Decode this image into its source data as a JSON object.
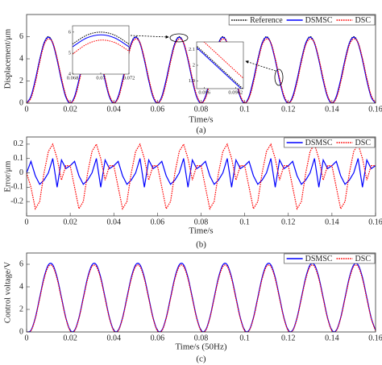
{
  "chart_data": [
    {
      "type": "line",
      "xlabel": "Time/s",
      "ylabel": "Displacement/μm",
      "caption": "(a)",
      "smooth": true,
      "legend": "upper right",
      "xlim": [
        0,
        0.16
      ],
      "ylim": [
        0,
        8
      ],
      "xticks": [
        0,
        0.02,
        0.04,
        0.06,
        0.08,
        0.1,
        0.12,
        0.14,
        0.16
      ],
      "yticks": [
        0,
        2,
        4,
        6
      ],
      "x": [
        0,
        0.002,
        0.004,
        0.006,
        0.008,
        0.01,
        0.012,
        0.014,
        0.016,
        0.018,
        0.02,
        0.022,
        0.024,
        0.026,
        0.028,
        0.03,
        0.032,
        0.034,
        0.036,
        0.038,
        0.04,
        0.042,
        0.044,
        0.046,
        0.048,
        0.05,
        0.052,
        0.054,
        0.056,
        0.058,
        0.06,
        0.062,
        0.064,
        0.066,
        0.068,
        0.07,
        0.072,
        0.074,
        0.076,
        0.078,
        0.08,
        0.082,
        0.084,
        0.086,
        0.088,
        0.09,
        0.092,
        0.094,
        0.096,
        0.098,
        0.1,
        0.102,
        0.104,
        0.106,
        0.108,
        0.11,
        0.112,
        0.114,
        0.116,
        0.118,
        0.12,
        0.122,
        0.124,
        0.126,
        0.128,
        0.13,
        0.132,
        0.134,
        0.136,
        0.138,
        0.14,
        0.142,
        0.144,
        0.146,
        0.148,
        0.15,
        0.152,
        0.154,
        0.156,
        0.158,
        0.16
      ],
      "series": [
        {
          "name": "Reference",
          "color": "#000000",
          "style": "dotted",
          "values": [
            0,
            0.57,
            2.07,
            3.93,
            5.43,
            6,
            5.43,
            3.93,
            2.07,
            0.57,
            0,
            0.57,
            2.07,
            3.93,
            5.43,
            6,
            5.43,
            3.93,
            2.07,
            0.57,
            0,
            0.57,
            2.07,
            3.93,
            5.43,
            6,
            5.43,
            3.93,
            2.07,
            0.57,
            0,
            0.57,
            2.07,
            3.93,
            5.43,
            6,
            5.43,
            3.93,
            2.07,
            0.57,
            0,
            0.57,
            2.07,
            3.93,
            5.43,
            6,
            5.43,
            3.93,
            2.07,
            0.57,
            0,
            0.57,
            2.07,
            3.93,
            5.43,
            6,
            5.43,
            3.93,
            2.07,
            0.57,
            0,
            0.57,
            2.07,
            3.93,
            5.43,
            6,
            5.43,
            3.93,
            2.07,
            0.57,
            0,
            0.57,
            2.07,
            3.93,
            5.43,
            6,
            5.43,
            3.93,
            2.07,
            0.57,
            0
          ]
        },
        {
          "name": "DSMSC",
          "color": "#0000ff",
          "style": "solid",
          "values": [
            0,
            0.6,
            2.1,
            3.9,
            5.4,
            5.95,
            5.4,
            3.9,
            2.05,
            0.55,
            0,
            0.6,
            2.1,
            3.9,
            5.4,
            5.95,
            5.4,
            3.9,
            2.05,
            0.55,
            0,
            0.6,
            2.1,
            3.9,
            5.4,
            5.95,
            5.4,
            3.9,
            2.05,
            0.55,
            0,
            0.6,
            2.1,
            3.9,
            5.4,
            5.95,
            5.4,
            3.9,
            2.05,
            0.55,
            0,
            0.6,
            2.1,
            3.9,
            5.4,
            5.95,
            5.4,
            3.9,
            2.05,
            0.55,
            0,
            0.6,
            2.1,
            3.9,
            5.4,
            5.95,
            5.4,
            3.9,
            2.05,
            0.55,
            0,
            0.6,
            2.1,
            3.9,
            5.4,
            5.95,
            5.4,
            3.9,
            2.05,
            0.55,
            0,
            0.6,
            2.1,
            3.9,
            5.4,
            5.95,
            5.4,
            3.9,
            2.05,
            0.55,
            0
          ]
        },
        {
          "name": "DSC",
          "color": "#ff0000",
          "style": "dotted",
          "values": [
            0,
            0.45,
            1.85,
            3.7,
            5.25,
            5.8,
            5.45,
            4.05,
            2.25,
            0.7,
            0.05,
            0.45,
            1.85,
            3.7,
            5.25,
            5.8,
            5.45,
            4.05,
            2.25,
            0.7,
            0.05,
            0.45,
            1.85,
            3.7,
            5.25,
            5.8,
            5.45,
            4.05,
            2.25,
            0.7,
            0.05,
            0.45,
            1.85,
            3.7,
            5.25,
            5.8,
            5.45,
            4.05,
            2.25,
            0.7,
            0.05,
            0.45,
            1.85,
            3.7,
            5.25,
            5.8,
            5.45,
            4.05,
            2.25,
            0.7,
            0.05,
            0.45,
            1.85,
            3.7,
            5.25,
            5.8,
            5.45,
            4.05,
            2.25,
            0.7,
            0.05,
            0.45,
            1.85,
            3.7,
            5.25,
            5.8,
            5.45,
            4.05,
            2.25,
            0.7,
            0.05,
            0.45,
            1.85,
            3.7,
            5.25,
            5.8,
            5.45,
            4.05,
            2.25,
            0.7,
            0.05
          ]
        }
      ]
    },
    {
      "type": "line",
      "xlabel": "Time/s",
      "ylabel": "Error/μm",
      "caption": "(b)",
      "smooth": false,
      "legend": "upper right",
      "xlim": [
        0,
        0.16
      ],
      "ylim": [
        -0.3,
        0.25
      ],
      "xticks": [
        0,
        0.02,
        0.04,
        0.06,
        0.08,
        0.1,
        0.12,
        0.14,
        0.16
      ],
      "yticks": [
        -0.2,
        -0.1,
        0,
        0.1,
        0.2
      ],
      "x": [
        0,
        0.002,
        0.004,
        0.006,
        0.008,
        0.01,
        0.012,
        0.014,
        0.016,
        0.018,
        0.02,
        0.022,
        0.024,
        0.026,
        0.028,
        0.03,
        0.032,
        0.034,
        0.036,
        0.038,
        0.04,
        0.042,
        0.044,
        0.046,
        0.048,
        0.05,
        0.052,
        0.054,
        0.056,
        0.058,
        0.06,
        0.062,
        0.064,
        0.066,
        0.068,
        0.07,
        0.072,
        0.074,
        0.076,
        0.078,
        0.08,
        0.082,
        0.084,
        0.086,
        0.088,
        0.09,
        0.092,
        0.094,
        0.096,
        0.098,
        0.1,
        0.102,
        0.104,
        0.106,
        0.108,
        0.11,
        0.112,
        0.114,
        0.116,
        0.118,
        0.12,
        0.122,
        0.124,
        0.126,
        0.128,
        0.13,
        0.132,
        0.134,
        0.136,
        0.138,
        0.14,
        0.142,
        0.144,
        0.146,
        0.148,
        0.15,
        0.152,
        0.154,
        0.156,
        0.158,
        0.16
      ],
      "series": [
        {
          "name": "DSMSC",
          "color": "#0000ff",
          "style": "solid",
          "values": [
            0,
            0.08,
            -0.02,
            -0.08,
            -0.05,
            0,
            0.1,
            -0.1,
            0.09,
            0.03,
            0.05,
            0.08,
            -0.02,
            -0.08,
            -0.05,
            0,
            0.1,
            -0.1,
            0.09,
            0.03,
            0.05,
            0.08,
            -0.02,
            -0.08,
            -0.05,
            0,
            0.1,
            -0.1,
            0.09,
            0.03,
            0.05,
            0.08,
            -0.02,
            -0.08,
            -0.05,
            0,
            0.1,
            -0.1,
            0.09,
            0.03,
            0.05,
            0.08,
            -0.02,
            -0.08,
            -0.05,
            0,
            0.1,
            -0.1,
            0.09,
            0.03,
            0.05,
            0.08,
            -0.02,
            -0.08,
            -0.05,
            0,
            0.1,
            -0.1,
            0.09,
            0.03,
            0.05,
            0.08,
            -0.02,
            -0.08,
            -0.05,
            0,
            0.1,
            -0.1,
            0.09,
            0.03,
            0.05,
            0.08,
            -0.02,
            -0.08,
            -0.05,
            0,
            0.1,
            -0.1,
            0.09,
            0.03,
            0.05
          ]
        },
        {
          "name": "DSC",
          "color": "#ff0000",
          "style": "dotted",
          "values": [
            0,
            -0.1,
            -0.25,
            -0.2,
            0,
            0.15,
            0.2,
            0.1,
            -0.05,
            0.05,
            0.05,
            -0.1,
            -0.25,
            -0.2,
            0,
            0.15,
            0.2,
            0.1,
            -0.05,
            0.05,
            0.05,
            -0.1,
            -0.25,
            -0.2,
            0,
            0.15,
            0.2,
            0.1,
            -0.05,
            0.05,
            0.05,
            -0.1,
            -0.25,
            -0.2,
            0,
            0.15,
            0.2,
            0.1,
            -0.05,
            0.05,
            0.05,
            -0.1,
            -0.25,
            -0.2,
            0,
            0.15,
            0.2,
            0.1,
            -0.05,
            0.05,
            0.05,
            -0.1,
            -0.25,
            -0.2,
            0,
            0.15,
            0.2,
            0.1,
            -0.05,
            0.05,
            0.05,
            -0.1,
            -0.25,
            -0.2,
            0,
            0.15,
            0.2,
            0.1,
            -0.05,
            0.05,
            0.05,
            -0.1,
            -0.25,
            -0.2,
            0,
            0.15,
            0.2,
            0.1,
            -0.05,
            0.05,
            0.05
          ]
        }
      ]
    },
    {
      "type": "line",
      "xlabel": "Time/s (50Hz)",
      "ylabel": "Control voltage/V",
      "caption": "(c)",
      "smooth": true,
      "legend": "upper right",
      "xlim": [
        0,
        0.16
      ],
      "ylim": [
        0,
        7
      ],
      "xticks": [
        0,
        0.02,
        0.04,
        0.06,
        0.08,
        0.1,
        0.12,
        0.14,
        0.16
      ],
      "yticks": [
        0,
        2,
        4,
        6
      ],
      "x": [
        0,
        0.002,
        0.004,
        0.006,
        0.008,
        0.01,
        0.012,
        0.014,
        0.016,
        0.018,
        0.02,
        0.022,
        0.024,
        0.026,
        0.028,
        0.03,
        0.032,
        0.034,
        0.036,
        0.038,
        0.04,
        0.042,
        0.044,
        0.046,
        0.048,
        0.05,
        0.052,
        0.054,
        0.056,
        0.058,
        0.06,
        0.062,
        0.064,
        0.066,
        0.068,
        0.07,
        0.072,
        0.074,
        0.076,
        0.078,
        0.08,
        0.082,
        0.084,
        0.086,
        0.088,
        0.09,
        0.092,
        0.094,
        0.096,
        0.098,
        0.1,
        0.102,
        0.104,
        0.106,
        0.108,
        0.11,
        0.112,
        0.114,
        0.116,
        0.118,
        0.12,
        0.122,
        0.124,
        0.126,
        0.128,
        0.13,
        0.132,
        0.134,
        0.136,
        0.138,
        0.14,
        0.142,
        0.144,
        0.146,
        0.148,
        0.15,
        0.152,
        0.154,
        0.156,
        0.158,
        0.16
      ],
      "series": [
        {
          "name": "DSMSC",
          "color": "#0000ff",
          "style": "solid",
          "values": [
            0,
            0.15,
            1.26,
            3.05,
            4.84,
            5.95,
            5.95,
            4.84,
            3.05,
            1.26,
            0.15,
            0.15,
            1.26,
            3.05,
            4.84,
            5.95,
            5.95,
            4.84,
            3.05,
            1.26,
            0.15,
            0.15,
            1.26,
            3.05,
            4.84,
            5.95,
            5.95,
            4.84,
            3.05,
            1.26,
            0.15,
            0.15,
            1.26,
            3.05,
            4.84,
            5.95,
            5.95,
            4.84,
            3.05,
            1.26,
            0.15,
            0.15,
            1.26,
            3.05,
            4.84,
            5.95,
            5.95,
            4.84,
            3.05,
            1.26,
            0.15,
            0.15,
            1.26,
            3.05,
            4.84,
            5.95,
            5.95,
            4.84,
            3.05,
            1.26,
            0.15,
            0.15,
            1.26,
            3.05,
            4.84,
            5.95,
            5.95,
            4.84,
            3.05,
            1.26,
            0.15,
            0.15,
            1.26,
            3.05,
            4.84,
            5.95,
            5.95,
            4.84,
            3.05,
            1.26,
            0.15
          ]
        },
        {
          "name": "DSC",
          "color": "#ff0000",
          "style": "dotted",
          "values": [
            0,
            0.1,
            1.2,
            2.95,
            4.7,
            5.8,
            5.8,
            4.7,
            2.95,
            1.2,
            0.1,
            0.1,
            1.2,
            2.95,
            4.7,
            5.8,
            5.8,
            4.7,
            2.95,
            1.2,
            0.1,
            0.1,
            1.2,
            2.95,
            4.7,
            5.8,
            5.8,
            4.7,
            2.95,
            1.2,
            0.1,
            0.1,
            1.2,
            2.95,
            4.7,
            5.8,
            5.8,
            4.7,
            2.95,
            1.2,
            0.1,
            0.1,
            1.2,
            2.95,
            4.7,
            5.8,
            5.8,
            4.7,
            2.95,
            1.2,
            0.1,
            0.1,
            1.2,
            2.95,
            4.7,
            5.8,
            5.8,
            4.7,
            2.95,
            1.2,
            0.1,
            0.1,
            1.2,
            2.95,
            4.7,
            5.8,
            5.8,
            4.7,
            2.95,
            1.2,
            0.1,
            0.1,
            1.2,
            2.95,
            4.7,
            5.8,
            5.8,
            4.7,
            2.95,
            1.2,
            0.1
          ]
        }
      ]
    },
    {
      "type": "line",
      "smooth": true,
      "xlim": [
        0.068,
        0.072
      ],
      "ylim": [
        4,
        6.3
      ],
      "xticks": [
        0.068,
        0.07,
        0.072
      ],
      "yticks": [
        4,
        5,
        6
      ],
      "x": [
        0.068,
        0.069,
        0.07,
        0.071,
        0.072
      ],
      "series": [
        {
          "color": "#000000",
          "style": "dotted",
          "values": [
            5.43,
            5.85,
            6,
            5.85,
            5.43
          ]
        },
        {
          "color": "#0000ff",
          "style": "solid",
          "values": [
            5.3,
            5.72,
            5.87,
            5.72,
            5.3
          ]
        },
        {
          "color": "#ff0000",
          "style": "dotted",
          "values": [
            4.95,
            5.42,
            5.62,
            5.5,
            5.1
          ]
        }
      ]
    },
    {
      "type": "line",
      "smooth": false,
      "xlim": [
        0.09595,
        0.09625
      ],
      "ylim": [
        1.85,
        2.15
      ],
      "xticks": [
        0.096,
        0.0962
      ],
      "yticks": [
        1.9,
        2,
        2.1
      ],
      "x": [
        0.0959,
        0.0963
      ],
      "series": [
        {
          "color": "#000000",
          "style": "dotted",
          "values": [
            2.17,
            1.8
          ]
        },
        {
          "color": "#0000ff",
          "style": "solid",
          "values": [
            2.16,
            1.79
          ]
        },
        {
          "color": "#ff0000",
          "style": "dotted",
          "values": [
            2.24,
            1.87
          ]
        }
      ]
    }
  ]
}
